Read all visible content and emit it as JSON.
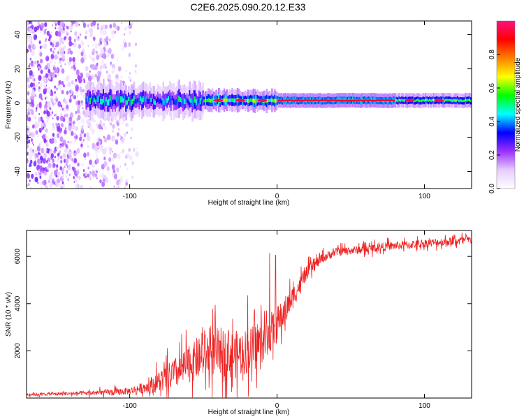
{
  "title": "C2E6.2025.090.20.12.E33",
  "chart_data": [
    {
      "type": "heatmap",
      "name": "spectrogram",
      "xlabel": "Height of straight line (km)",
      "ylabel": "Frequency (Hz)",
      "xlim": [
        -170,
        132
      ],
      "ylim": [
        -50,
        48
      ],
      "xticks": [
        -100,
        0,
        100
      ],
      "yticks": [
        -40,
        -20,
        0,
        20,
        40
      ],
      "colorbar": {
        "label": "Normalized spectral amplitude",
        "range": [
          0,
          1
        ],
        "ticks": [
          0.0,
          0.2,
          0.4,
          0.6,
          0.8
        ],
        "colors": [
          "#ffffff",
          "#e6ccff",
          "#9b30ff",
          "#0000ff",
          "#00ffff",
          "#00ff00",
          "#ffff00",
          "#ff8000",
          "#ff0000",
          "#ff1080"
        ]
      },
      "features": {
        "noise_region_x": [
          -170,
          -95
        ],
        "main_line_start_x": -130,
        "main_line_center_hz": 1.5,
        "strong_segment_x": [
          0,
          80
        ],
        "bright_spots_x": [
          -40,
          -25,
          -10,
          90,
          110
        ]
      }
    },
    {
      "type": "line",
      "name": "snr",
      "xlabel": "Height of straight line (km)",
      "ylabel": "SNR (10 * v/v)",
      "xlim": [
        -170,
        132
      ],
      "ylim": [
        0,
        7100
      ],
      "xticks": [
        -100,
        0,
        100
      ],
      "yticks": [
        2000,
        4000,
        6000
      ],
      "color": "#ee2222",
      "series": [
        {
          "name": "SNR",
          "x": [
            -170,
            -150,
            -130,
            -110,
            -100,
            -90,
            -80,
            -70,
            -60,
            -50,
            -40,
            -30,
            -20,
            -10,
            0,
            10,
            20,
            30,
            40,
            50,
            60,
            70,
            80,
            90,
            100,
            110,
            120,
            132
          ],
          "y": [
            150,
            180,
            200,
            250,
            300,
            450,
            700,
            1000,
            1400,
            1800,
            2000,
            1800,
            2000,
            2400,
            3100,
            4200,
            5300,
            5900,
            6200,
            6250,
            6300,
            6400,
            6450,
            6500,
            6550,
            6600,
            6650,
            6700
          ]
        }
      ],
      "features": {
        "noise_amplitude": [
          80,
          120,
          150,
          250,
          250,
          400,
          800,
          1100,
          1300,
          1500,
          1700,
          1700,
          1600,
          1500,
          1300,
          800,
          500,
          350,
          300,
          300,
          300,
          300,
          300,
          300,
          300,
          300,
          300,
          300
        ],
        "peaks": [
          {
            "x": -42,
            "y": 3950
          },
          {
            "x": -20,
            "y": 4350
          },
          {
            "x": -5,
            "y": 6150
          },
          {
            "x": -1,
            "y": 6050
          }
        ]
      }
    }
  ]
}
